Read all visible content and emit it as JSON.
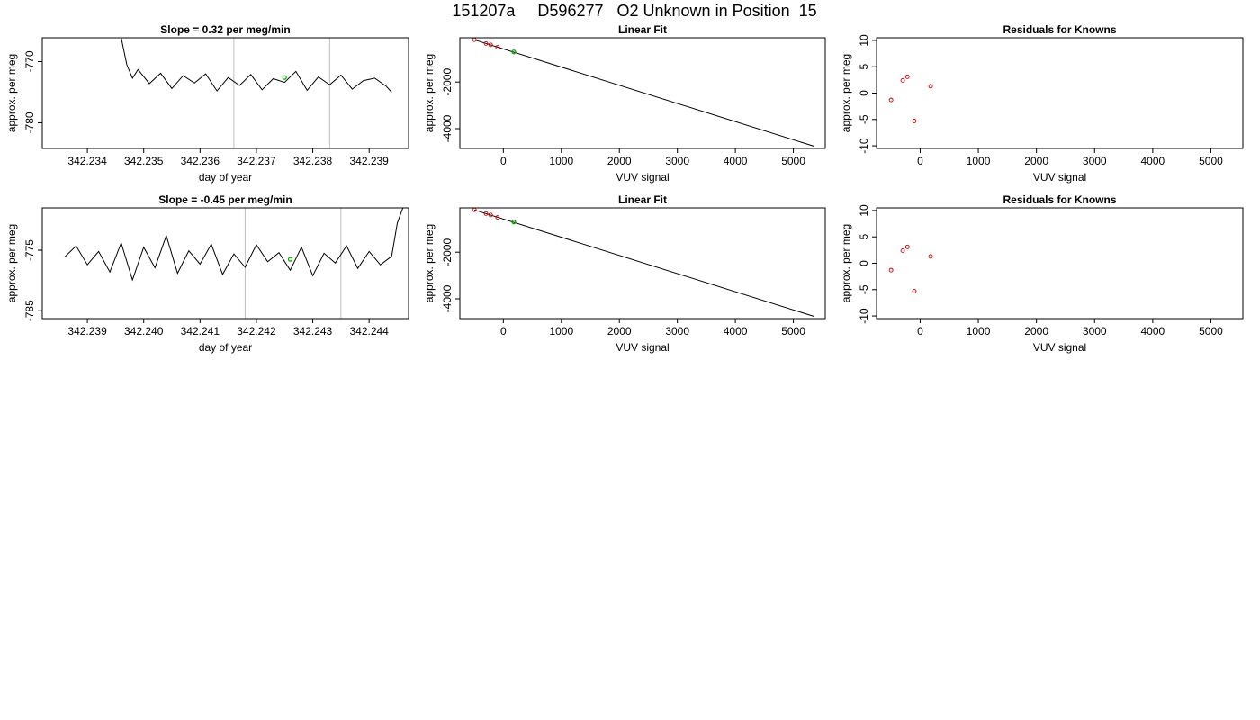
{
  "page": {
    "title_parts": [
      "151207a",
      "D596277",
      "O2 Unknown in Position  15"
    ]
  },
  "colors": {
    "series_line": "#000000",
    "known_points": "#cc0000",
    "unknown_point": "#00aa00",
    "marker_lines": "#bebebe",
    "frame": "#000000"
  },
  "chart_data": [
    {
      "type": "line",
      "title": "Slope =  0.32  per meg/min",
      "xlabel": "day of year",
      "ylabel": "approx. per meg",
      "xlim": [
        342.2332,
        342.2397
      ],
      "ylim": [
        -784.2,
        -766.1
      ],
      "xticks": [
        "342.234",
        "342.235",
        "342.236",
        "342.237",
        "342.238",
        "342.239"
      ],
      "yticks": [
        "-770",
        "-780"
      ],
      "vlines": [
        342.2366,
        342.2383
      ],
      "series": [
        {
          "x": [
            342.2346,
            342.2347,
            342.2348,
            342.2349,
            342.2351,
            342.2353,
            342.2355,
            342.2357,
            342.2359,
            342.2361,
            342.2363,
            342.2365,
            342.2367,
            342.2369,
            342.2371,
            342.2373,
            342.2375,
            342.2377,
            342.2379,
            342.2381,
            342.2383,
            342.2385,
            342.2387,
            342.2389,
            342.2391,
            342.2393,
            342.2394
          ],
          "y": [
            -766.1,
            -770.5,
            -772.7,
            -771.3,
            -773.6,
            -771.9,
            -774.4,
            -772.3,
            -773.5,
            -772.0,
            -774.8,
            -772.6,
            -773.9,
            -772.1,
            -774.6,
            -772.8,
            -773.4,
            -771.6,
            -774.7,
            -772.5,
            -773.8,
            -772.2,
            -774.5,
            -773.1,
            -772.7,
            -774.0,
            -775.0
          ]
        }
      ],
      "unknown_point": {
        "x": 342.2375,
        "y": -772.6
      }
    },
    {
      "type": "line",
      "title": "Linear Fit",
      "xlabel": "VUV signal",
      "ylabel": "approx. per meg",
      "xlim": [
        -750,
        5550
      ],
      "ylim": [
        -4850,
        -100
      ],
      "xticks": [
        "0",
        "1000",
        "2000",
        "3000",
        "4000",
        "5000"
      ],
      "yticks": [
        "-2000",
        "-4000"
      ],
      "fit_line": {
        "x": [
          -500,
          5350
        ],
        "y": [
          -190,
          -4750
        ]
      },
      "known_points": {
        "x": [
          -500,
          -300,
          -220,
          -100,
          180
        ],
        "y": [
          -185,
          -345,
          -400,
          -510,
          -710
        ]
      },
      "unknown_point": {
        "x": 180,
        "y": -705
      }
    },
    {
      "type": "scatter",
      "title": "Residuals for Knowns",
      "xlabel": "VUV signal",
      "ylabel": "approx. per meg",
      "xlim": [
        -750,
        5550
      ],
      "ylim": [
        -10.5,
        10.5
      ],
      "xticks": [
        "0",
        "1000",
        "2000",
        "3000",
        "4000",
        "5000"
      ],
      "yticks": [
        "-10",
        "-5",
        "0",
        "5",
        "10"
      ],
      "known_points": {
        "x": [
          -500,
          -300,
          -220,
          -100,
          180
        ],
        "y": [
          -1.3,
          2.4,
          3.1,
          -5.3,
          1.3
        ]
      }
    },
    {
      "type": "line",
      "title": "Slope =  -0.45  per meg/min",
      "xlabel": "day of year",
      "ylabel": "approx. per meg",
      "xlim": [
        342.2382,
        342.2447
      ],
      "ylim": [
        -786.3,
        -768.0
      ],
      "xticks": [
        "342.239",
        "342.240",
        "342.241",
        "342.242",
        "342.243",
        "342.244"
      ],
      "yticks": [
        "-775",
        "-785"
      ],
      "vlines": [
        342.2418,
        342.2435
      ],
      "series": [
        {
          "x": [
            342.2386,
            342.2388,
            342.239,
            342.2392,
            342.2394,
            342.2396,
            342.2398,
            342.24,
            342.2402,
            342.2404,
            342.2406,
            342.2408,
            342.241,
            342.2412,
            342.2414,
            342.2416,
            342.2418,
            342.242,
            342.2422,
            342.2424,
            342.2426,
            342.2428,
            342.243,
            342.2432,
            342.2434,
            342.2436,
            342.2438,
            342.244,
            342.2442,
            342.2444,
            342.2445,
            342.2446
          ],
          "y": [
            -776.1,
            -774.3,
            -777.4,
            -775.2,
            -778.6,
            -773.8,
            -779.9,
            -774.5,
            -777.9,
            -772.6,
            -778.8,
            -775.1,
            -777.3,
            -774.0,
            -779.0,
            -775.6,
            -777.8,
            -774.1,
            -776.9,
            -775.4,
            -778.3,
            -774.5,
            -779.2,
            -775.5,
            -777.1,
            -774.3,
            -778.0,
            -775.2,
            -777.4,
            -776.0,
            -770.5,
            -768.0
          ]
        }
      ],
      "unknown_point": {
        "x": 342.2426,
        "y": -776.5
      }
    },
    {
      "type": "line",
      "title": "Linear Fit",
      "xlabel": "VUV signal",
      "ylabel": "approx. per meg",
      "xlim": [
        -750,
        5550
      ],
      "ylim": [
        -4850,
        -100
      ],
      "xticks": [
        "0",
        "1000",
        "2000",
        "3000",
        "4000",
        "5000"
      ],
      "yticks": [
        "-2000",
        "-4000"
      ],
      "fit_line": {
        "x": [
          -500,
          5350
        ],
        "y": [
          -190,
          -4750
        ]
      },
      "known_points": {
        "x": [
          -500,
          -300,
          -220,
          -100,
          180
        ],
        "y": [
          -185,
          -345,
          -400,
          -510,
          -710
        ]
      },
      "unknown_point": {
        "x": 180,
        "y": -705
      }
    },
    {
      "type": "scatter",
      "title": "Residuals for Knowns",
      "xlabel": "VUV signal",
      "ylabel": "approx. per meg",
      "xlim": [
        -750,
        5550
      ],
      "ylim": [
        -10.5,
        10.5
      ],
      "xticks": [
        "0",
        "1000",
        "2000",
        "3000",
        "4000",
        "5000"
      ],
      "yticks": [
        "-10",
        "-5",
        "0",
        "5",
        "10"
      ],
      "known_points": {
        "x": [
          -500,
          -300,
          -220,
          -100,
          180
        ],
        "y": [
          -1.3,
          2.4,
          3.1,
          -5.3,
          1.3
        ]
      }
    }
  ]
}
